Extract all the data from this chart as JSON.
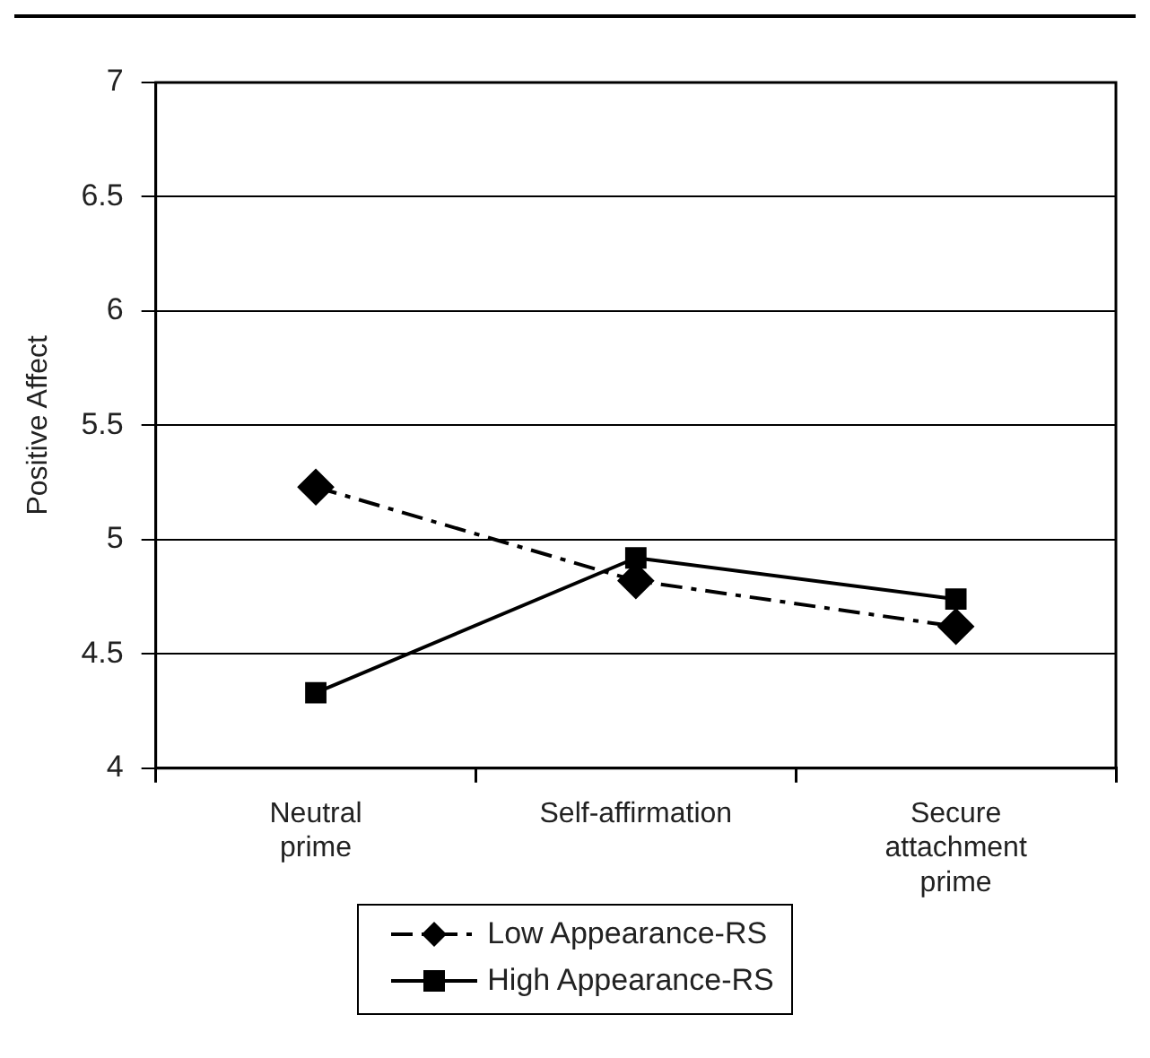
{
  "chart_data": {
    "type": "line",
    "ylabel": "Positive Affect",
    "categories": [
      "Neutral prime",
      "Self-affirmation",
      "Secure attachment prime"
    ],
    "series": [
      {
        "name": "Low Appearance-RS",
        "color": "#000000",
        "values": [
          5.23,
          4.82,
          4.62
        ],
        "marker": "diamond",
        "line_style": "dashed"
      },
      {
        "name": "High Appearance-RS",
        "color": "#000000",
        "values": [
          4.33,
          4.92,
          4.74
        ],
        "marker": "square",
        "line_style": "solid"
      }
    ],
    "ylim": [
      4,
      7
    ],
    "yticks": [
      4,
      4.5,
      5,
      5.5,
      6,
      6.5,
      7
    ],
    "grid": "y",
    "legend": "bottom"
  }
}
